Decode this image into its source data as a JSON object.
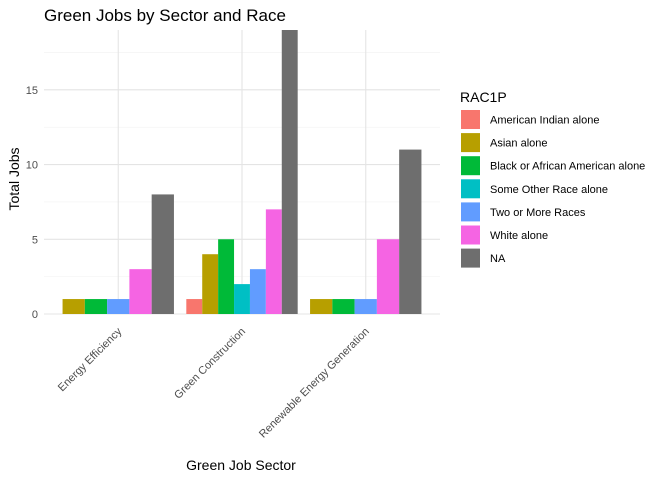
{
  "chart_data": {
    "type": "bar",
    "title": "Green Jobs by Sector and Race",
    "xlabel": "Green Job Sector",
    "ylabel": "Total Jobs",
    "categories": [
      "Energy Efficiency",
      "Green Construction",
      "Renewable Energy Generation"
    ],
    "ylim": [
      0,
      19
    ],
    "yticks": [
      0,
      5,
      10,
      15
    ],
    "grid": true,
    "legend_title": "RAC1P",
    "legend_position": "right",
    "series": [
      {
        "name": "American Indian alone",
        "color": "#F8766D",
        "values": [
          null,
          1,
          null
        ]
      },
      {
        "name": "Asian alone",
        "color": "#B79F00",
        "values": [
          1,
          4,
          1
        ]
      },
      {
        "name": "Black or African American alone",
        "color": "#00BA38",
        "values": [
          1,
          5,
          1
        ]
      },
      {
        "name": "Some Other Race alone",
        "color": "#00BFC4",
        "values": [
          null,
          2,
          null
        ]
      },
      {
        "name": "Two or More Races",
        "color": "#619CFF",
        "values": [
          1,
          3,
          1
        ]
      },
      {
        "name": "White alone",
        "color": "#F564E3",
        "values": [
          3,
          7,
          5
        ]
      },
      {
        "name": "NA",
        "color": "#6E6E6E",
        "values": [
          8,
          19,
          11
        ]
      }
    ]
  }
}
